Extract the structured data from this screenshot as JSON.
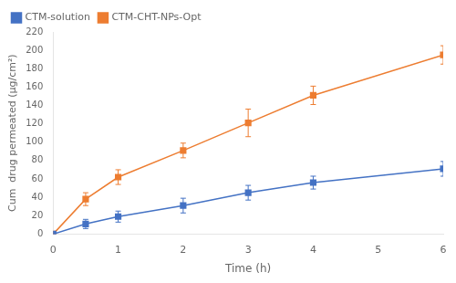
{
  "chart_data": {
    "type": "line",
    "x": [
      0,
      0.5,
      1,
      2,
      3,
      4,
      6
    ],
    "series": [
      {
        "name": "CTM-solution",
        "color": "#4472C4",
        "marker": "square",
        "values": [
          0,
          11,
          19,
          31,
          45,
          56,
          71
        ],
        "errors": [
          0,
          5,
          6,
          8,
          8,
          7,
          8
        ]
      },
      {
        "name": "CTM-CHT-NPs-Opt",
        "color": "#ED7D31",
        "marker": "square",
        "values": [
          0,
          38,
          62,
          91,
          121,
          151,
          195
        ],
        "errors": [
          0,
          7,
          8,
          8,
          15,
          10,
          10
        ]
      }
    ],
    "xlabel": "Time (h)",
    "ylabel": "Cum  drug permeated (μg/cm²)",
    "xlim": [
      0,
      6
    ],
    "ylim": [
      0,
      220
    ],
    "xticks": [
      0,
      1,
      2,
      3,
      4,
      5,
      6
    ],
    "yticks": [
      0,
      20,
      40,
      60,
      80,
      100,
      120,
      140,
      160,
      180,
      200,
      220
    ],
    "grid": false,
    "legend": "upper left"
  }
}
